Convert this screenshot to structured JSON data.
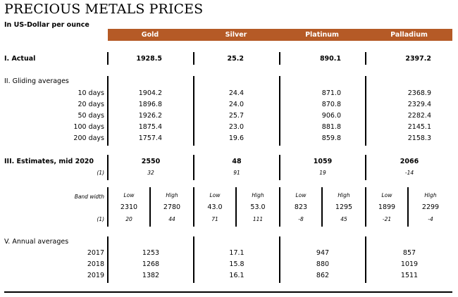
{
  "title": "PRECIOUS METALS PRICES",
  "subtitle": "In US-Dollar per ounce",
  "columns": [
    "Gold",
    "Silver",
    "Platinum",
    "Palladium"
  ],
  "actual": {
    "label": "I. Actual",
    "values": [
      "1928.5",
      "25.2",
      "890.1",
      "2397.2"
    ]
  },
  "gliding": {
    "label": "II. Gliding averages",
    "rows": [
      {
        "label": "10 days",
        "values": [
          "1904.2",
          "24.4",
          "871.0",
          "2368.9"
        ]
      },
      {
        "label": "20 days",
        "values": [
          "1896.8",
          "24.0",
          "870.8",
          "2329.4"
        ]
      },
      {
        "label": "50 days",
        "values": [
          "1926.2",
          "25.7",
          "906.0",
          "2282.4"
        ]
      },
      {
        "label": "100 days",
        "values": [
          "1875.4",
          "23.0",
          "881.8",
          "2145.1"
        ]
      },
      {
        "label": "200 days",
        "values": [
          "1757.4",
          "19.6",
          "859.8",
          "2158.3"
        ]
      }
    ]
  },
  "estimates": {
    "label": "III. Estimates, mid 2020",
    "values": [
      "2550",
      "48",
      "1059",
      "2066"
    ],
    "footnote_marker": "(1)",
    "footnote_values": [
      "32",
      "91",
      "19",
      "-14"
    ]
  },
  "band": {
    "label": "Band width",
    "low_label": "Low",
    "high_label": "High",
    "values": [
      "2310",
      "2780",
      "43.0",
      "53.0",
      "823",
      "1295",
      "1899",
      "2299"
    ],
    "footnote_marker": "(1)",
    "footnote_values": [
      "20",
      "44",
      "71",
      "111",
      "-8",
      "45",
      "-21",
      "-4"
    ]
  },
  "annual": {
    "label": "V. Annual averages",
    "rows": [
      {
        "label": "2017",
        "values": [
          "1253",
          "17.1",
          "947",
          "857"
        ]
      },
      {
        "label": "2018",
        "values": [
          "1268",
          "15.8",
          "880",
          "1019"
        ]
      },
      {
        "label": "2019",
        "values": [
          "1382",
          "16.1",
          "862",
          "1511"
        ]
      }
    ]
  },
  "colors": {
    "header": "#b55a26",
    "header_text": "#ffffff",
    "rule": "#000000"
  }
}
